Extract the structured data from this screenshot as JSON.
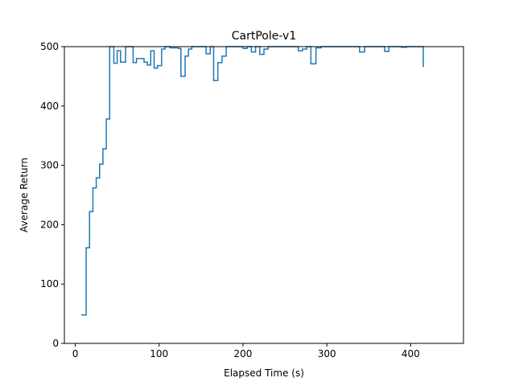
{
  "chart_data": {
    "type": "line",
    "step": true,
    "title": "CartPole-v1",
    "xlabel": "Elapsed Time (s)",
    "ylabel": "Average Return",
    "xlim": [
      -13,
      463
    ],
    "ylim": [
      0,
      500
    ],
    "xticks": [
      0,
      100,
      200,
      300,
      400
    ],
    "yticks": [
      0,
      100,
      200,
      300,
      400,
      500
    ],
    "grid": false,
    "legend": "none",
    "colors": {
      "line": "#1f77b4",
      "axes": "#000000",
      "background": "#ffffff"
    },
    "series": [
      {
        "x": [
          7,
          13,
          17,
          21,
          25,
          29,
          33,
          37,
          41,
          46,
          50,
          54,
          60,
          69,
          73,
          78,
          82,
          86,
          90,
          94,
          98,
          103,
          107,
          113,
          118,
          123,
          126,
          131,
          135,
          139,
          145,
          151,
          156,
          161,
          165,
          170,
          175,
          180,
          189,
          194,
          200,
          205,
          210,
          215,
          220,
          225,
          230,
          236,
          241,
          246,
          251,
          256,
          261,
          266,
          271,
          276,
          281,
          287,
          293,
          299,
          305,
          311,
          317,
          323,
          329,
          335,
          339,
          345,
          351,
          356,
          361,
          365,
          369,
          374,
          379,
          383,
          389,
          395,
          401,
          407,
          411,
          415
        ],
        "y": [
          48,
          161,
          222,
          262,
          279,
          302,
          328,
          378,
          500,
          472,
          493,
          474,
          500,
          473,
          480,
          480,
          474,
          469,
          493,
          464,
          468,
          496,
          500,
          498,
          498,
          497,
          450,
          484,
          496,
          500,
          500,
          500,
          488,
          500,
          443,
          473,
          484,
          500,
          500,
          500,
          497,
          500,
          491,
          500,
          487,
          496,
          500,
          500,
          500,
          500,
          500,
          500,
          500,
          493,
          496,
          500,
          471,
          498,
          500,
          500,
          500,
          500,
          500,
          500,
          500,
          500,
          491,
          500,
          500,
          500,
          500,
          500,
          492,
          500,
          500,
          500,
          499,
          500,
          500,
          500,
          500,
          467
        ]
      }
    ]
  }
}
